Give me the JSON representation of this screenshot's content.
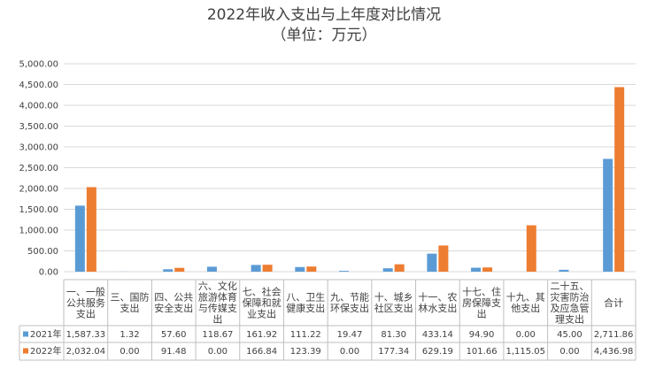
{
  "chart_data": {
    "type": "bar",
    "title_lines": [
      "2022年收入支出与上年度对比情况",
      "（单位：万元）"
    ],
    "categories": [
      "一、一般公共服务支出",
      "三、国防支出",
      "四、公共安全支出",
      "六、文化旅游体育与传媒支出",
      "七、社会保障和就业支出",
      "八、卫生健康支出",
      "九、节能环保支出",
      "十、城乡社区支出",
      "十一、农林水支出",
      "十七、住房保障支出",
      "十九、其他支出",
      "二十五、灾害防治及应急管理支出",
      "合计"
    ],
    "category_label_lines": [
      [
        "一、一般",
        "公共服务",
        "支出"
      ],
      [
        "三、国防",
        "支出"
      ],
      [
        "四、公共",
        "安全支出"
      ],
      [
        "六、文化",
        "旅游体育",
        "与传媒支",
        "出"
      ],
      [
        "七、社会",
        "保障和就",
        "业支出"
      ],
      [
        "八、卫生",
        "健康支出"
      ],
      [
        "九、节能",
        "环保支出"
      ],
      [
        "十、城乡",
        "社区支出"
      ],
      [
        "十一、农",
        "林水支出"
      ],
      [
        "十七、住",
        "房保障支",
        "出"
      ],
      [
        "十九、其",
        "他支出"
      ],
      [
        "二十五、",
        "灾害防治",
        "及应急管",
        "理支出"
      ],
      [
        "合计"
      ]
    ],
    "series": [
      {
        "name": "2021年",
        "color": "#5b9bd5",
        "values": [
          1587.33,
          1.32,
          57.6,
          118.67,
          161.92,
          111.22,
          19.47,
          81.3,
          433.14,
          94.9,
          0.0,
          45.0,
          2711.86
        ],
        "labels": [
          "1,587.33",
          "1.32",
          "57.60",
          "118.67",
          "161.92",
          "111.22",
          "19.47",
          "81.30",
          "433.14",
          "94.90",
          "0.00",
          "45.00",
          "2,711.86"
        ]
      },
      {
        "name": "2022年",
        "color": "#ed7d31",
        "values": [
          2032.04,
          0.0,
          91.48,
          0.0,
          166.84,
          123.39,
          0.0,
          177.34,
          629.19,
          101.66,
          1115.05,
          0.0,
          4436.98
        ],
        "labels": [
          "2,032.04",
          "0.00",
          "91.48",
          "0.00",
          "166.84",
          "123.39",
          "0.00",
          "177.34",
          "629.19",
          "101.66",
          "1,115.05",
          "0.00",
          "4,436.98"
        ]
      }
    ],
    "ylim": [
      0,
      5000
    ],
    "yticks": [
      0,
      500,
      1000,
      1500,
      2000,
      2500,
      3000,
      3500,
      4000,
      4500,
      5000
    ],
    "ytick_labels": [
      "0.00",
      "500.00",
      "1,000.00",
      "1,500.00",
      "2,000.00",
      "2,500.00",
      "3,000.00",
      "3,500.00",
      "4,000.00",
      "4,500.00",
      "5,000.00"
    ],
    "grid": true,
    "legend": "data-table"
  }
}
